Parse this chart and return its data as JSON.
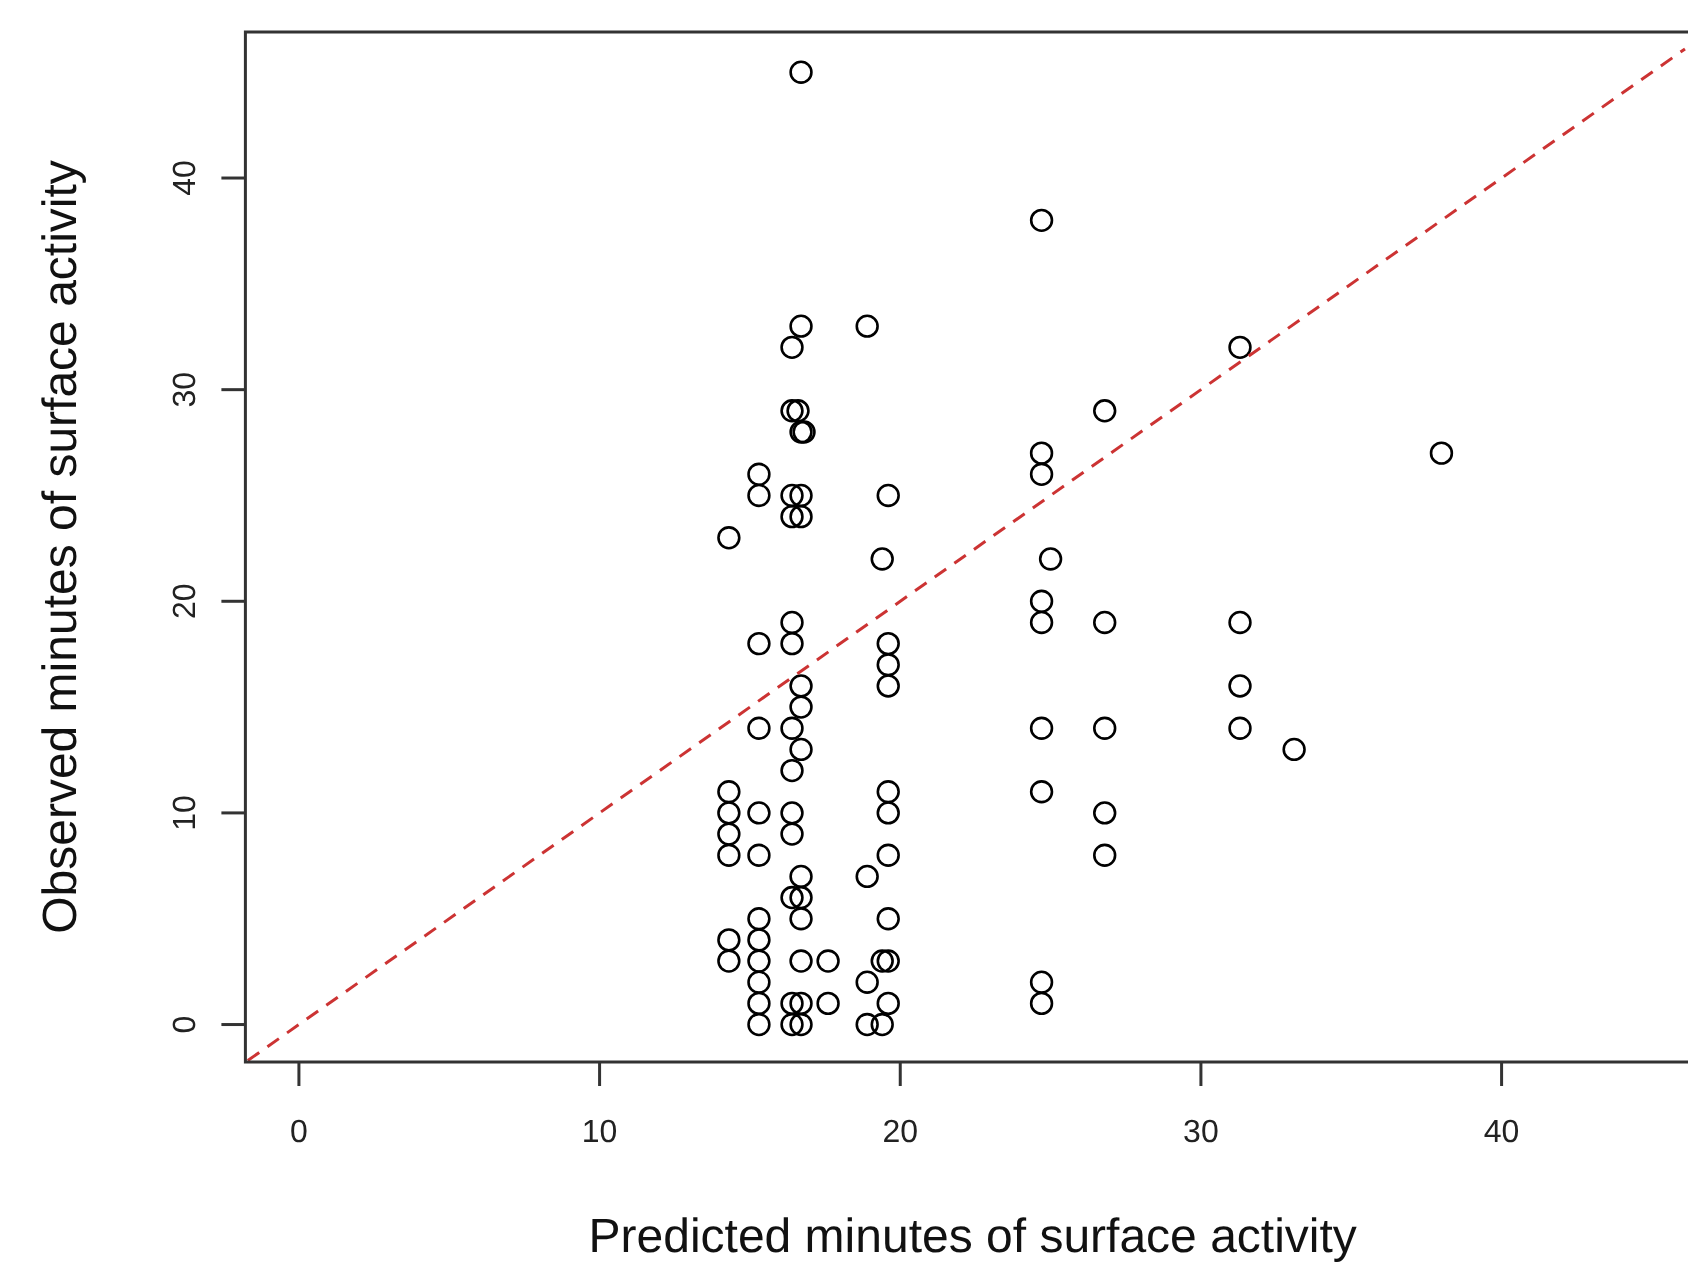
{
  "chart_data": {
    "type": "scatter",
    "xlabel": "Predicted minutes of surface activity",
    "ylabel": "Observed minutes of surface activity",
    "xlim": [
      -1.78,
      46.2
    ],
    "ylim": [
      -1.77,
      46.9
    ],
    "xticks": [
      0,
      10,
      20,
      30,
      40
    ],
    "yticks": [
      0,
      10,
      20,
      30,
      40
    ],
    "grid": false,
    "series": [
      {
        "color": "#000000",
        "marker": "circle",
        "x": [
          16.7,
          24.7,
          16.7,
          16.4,
          18.9,
          31.3,
          16.4,
          16.6,
          16.7,
          16.8,
          26.8,
          24.7,
          24.7,
          38.0,
          15.3,
          15.3,
          16.4,
          16.7,
          16.4,
          16.7,
          19.6,
          14.3,
          19.4,
          25.0,
          24.7,
          24.7,
          26.8,
          31.3,
          16.4,
          16.4,
          15.3,
          19.6,
          19.6,
          19.6,
          16.7,
          16.7,
          16.4,
          16.7,
          16.4,
          15.3,
          24.7,
          26.8,
          31.3,
          31.3,
          33.1,
          24.7,
          26.8,
          26.8,
          19.6,
          19.6,
          19.6,
          16.4,
          16.4,
          14.3,
          14.3,
          14.3,
          14.3,
          15.3,
          15.3,
          18.9,
          16.7,
          16.4,
          16.7,
          16.7,
          19.6,
          19.6,
          19.4,
          16.7,
          17.6,
          18.9,
          19.6,
          18.9,
          19.4,
          16.4,
          16.7,
          17.6,
          16.7,
          24.7,
          24.7,
          15.3,
          15.3,
          15.3,
          15.3,
          15.3,
          15.3,
          14.3,
          14.3,
          16.4
        ],
        "values": [
          45,
          38,
          33,
          32,
          33,
          32,
          29,
          29,
          28,
          28,
          29,
          27,
          26,
          27,
          26,
          25,
          25,
          25,
          24,
          24,
          25,
          23,
          22,
          22,
          20,
          19,
          19,
          19,
          19,
          18,
          18,
          18,
          17,
          16,
          16,
          15,
          14,
          13,
          12,
          14,
          14,
          14,
          14,
          16,
          13,
          11,
          10,
          8,
          11,
          10,
          8,
          10,
          9,
          11,
          10,
          9,
          8,
          10,
          8,
          7,
          7,
          6,
          6,
          5,
          5,
          3,
          3,
          3,
          3,
          2,
          1,
          0,
          0,
          1,
          1,
          1,
          0,
          2,
          1,
          5,
          4,
          3,
          2,
          1,
          0,
          4,
          3,
          0
        ]
      },
      {
        "type": "line",
        "color": "#cc3333",
        "line_style": "dashed",
        "x": [
          -1.7,
          46.1
        ],
        "values": [
          -1.7,
          46.1
        ]
      }
    ]
  }
}
